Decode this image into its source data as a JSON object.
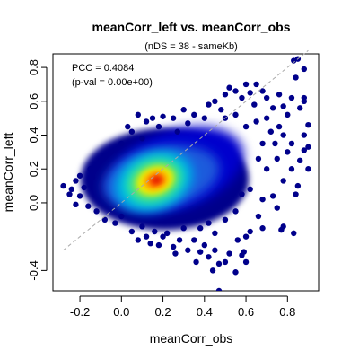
{
  "chart_data": {
    "type": "scatter",
    "title": "meanCorr_left vs. meanCorr_obs",
    "subtitle": "(nDS = 38 - sameKb)",
    "xlabel": "meanCorr_obs",
    "ylabel": "meanCorr_left",
    "xlim": [
      -0.33,
      0.95
    ],
    "ylim": [
      -0.52,
      0.88
    ],
    "x_ticks": [
      -0.2,
      0.0,
      0.2,
      0.4,
      0.6,
      0.8
    ],
    "x_tick_labels": [
      "-0.2",
      "0.0",
      "0.2",
      "0.4",
      "0.6",
      "0.8"
    ],
    "y_ticks": [
      -0.4,
      0.0,
      0.2,
      0.4,
      0.6,
      0.8
    ],
    "y_tick_labels": [
      "-0.4",
      "0.0",
      "0.2",
      "0.4",
      "0.6",
      "0.8"
    ],
    "grid": false,
    "annotations": [
      "PCC = 0.4084",
      "(p-val = 0.00e+00)"
    ],
    "reference_line": {
      "style": "dashed",
      "color": "#aaaaaa",
      "from": [
        -0.28,
        -0.28
      ],
      "to": [
        0.9,
        0.9
      ]
    },
    "density": {
      "peak": [
        0.17,
        0.14
      ],
      "core": {
        "x_range": [
          -0.1,
          0.5
        ],
        "y_range": [
          -0.05,
          0.35
        ]
      },
      "colors": [
        "#00008b",
        "#0000cd",
        "#1e5adc",
        "#00a0e6",
        "#00dcd2",
        "#7de650",
        "#f0f000",
        "#ffa000",
        "#ff3c00",
        "#c80000"
      ]
    },
    "outlier_points": [
      [
        0.83,
        0.84
      ],
      [
        0.85,
        0.85
      ],
      [
        0.88,
        0.79
      ],
      [
        0.84,
        0.74
      ],
      [
        0.88,
        0.62
      ],
      [
        0.86,
        0.56
      ],
      [
        0.82,
        0.62
      ],
      [
        0.78,
        0.57
      ],
      [
        0.76,
        0.64
      ],
      [
        0.7,
        0.62
      ],
      [
        0.73,
        0.56
      ],
      [
        0.8,
        0.52
      ],
      [
        0.9,
        0.46
      ],
      [
        0.88,
        0.4
      ],
      [
        0.9,
        0.33
      ],
      [
        0.88,
        0.31
      ],
      [
        0.86,
        0.25
      ],
      [
        0.75,
        0.26
      ],
      [
        0.82,
        0.2
      ],
      [
        0.78,
        0.13
      ],
      [
        0.84,
        0.05
      ],
      [
        0.73,
        0.04
      ],
      [
        0.75,
        -0.03
      ],
      [
        0.68,
        0.02
      ],
      [
        0.66,
        -0.08
      ],
      [
        0.78,
        -0.14
      ],
      [
        0.68,
        -0.15
      ],
      [
        0.62,
        -0.17
      ],
      [
        0.83,
        -0.18
      ],
      [
        0.77,
        -0.16
      ],
      [
        0.55,
        -0.41
      ],
      [
        0.52,
        -0.3
      ],
      [
        0.5,
        -0.35
      ],
      [
        0.47,
        -0.36
      ],
      [
        0.45,
        -0.28
      ],
      [
        0.4,
        -0.25
      ],
      [
        0.38,
        -0.29
      ],
      [
        0.42,
        -0.32
      ],
      [
        0.35,
        -0.22
      ],
      [
        0.56,
        -0.22
      ],
      [
        0.59,
        -0.29
      ],
      [
        0.6,
        -0.35
      ],
      [
        0.58,
        -0.31
      ],
      [
        0.47,
        -0.52
      ],
      [
        0.3,
        -0.15
      ],
      [
        0.22,
        -0.18
      ],
      [
        0.16,
        -0.17
      ],
      [
        0.1,
        -0.14
      ],
      [
        0.08,
        -0.22
      ],
      [
        0.05,
        -0.17
      ],
      [
        0.0,
        -0.08
      ],
      [
        0.14,
        -0.24
      ],
      [
        0.38,
        -0.15
      ],
      [
        -0.28,
        0.1
      ],
      [
        -0.25,
        0.05
      ],
      [
        -0.22,
        -0.01
      ],
      [
        -0.2,
        0.16
      ],
      [
        -0.22,
        0.13
      ],
      [
        -0.18,
        0.09
      ],
      [
        -0.15,
        0.2
      ],
      [
        -0.1,
        0.25
      ],
      [
        -0.05,
        0.3
      ],
      [
        0.0,
        0.35
      ],
      [
        0.05,
        0.42
      ],
      [
        0.12,
        0.48
      ],
      [
        0.15,
        0.5
      ],
      [
        0.08,
        0.52
      ],
      [
        0.2,
        0.51
      ],
      [
        0.3,
        0.55
      ],
      [
        0.25,
        0.5
      ],
      [
        0.35,
        0.52
      ],
      [
        0.45,
        0.6
      ],
      [
        0.5,
        0.64
      ],
      [
        0.52,
        0.68
      ],
      [
        0.55,
        0.66
      ],
      [
        0.6,
        0.7
      ],
      [
        0.62,
        0.65
      ],
      [
        0.65,
        0.7
      ],
      [
        0.68,
        0.66
      ],
      [
        0.58,
        0.62
      ],
      [
        0.42,
        0.58
      ],
      [
        0.48,
        0.55
      ],
      [
        0.55,
        0.52
      ],
      [
        0.6,
        0.45
      ],
      [
        0.65,
        0.48
      ],
      [
        0.7,
        0.5
      ],
      [
        0.72,
        0.42
      ],
      [
        0.78,
        0.4
      ],
      [
        0.74,
        0.35
      ],
      [
        0.8,
        0.3
      ],
      [
        0.68,
        0.35
      ],
      [
        0.7,
        0.2
      ],
      [
        0.66,
        0.26
      ],
      [
        0.62,
        0.08
      ],
      [
        0.58,
        0.05
      ],
      [
        0.55,
        -0.05
      ],
      [
        0.5,
        -0.1
      ],
      [
        0.45,
        -0.18
      ],
      [
        0.42,
        -0.12
      ],
      [
        0.28,
        -0.22
      ],
      [
        0.32,
        -0.28
      ],
      [
        0.25,
        -0.26
      ],
      [
        0.18,
        -0.25
      ],
      [
        0.2,
        -0.2
      ],
      [
        -0.12,
        -0.05
      ],
      [
        -0.08,
        -0.1
      ],
      [
        -0.03,
        -0.12
      ],
      [
        -0.2,
        0.04
      ],
      [
        -0.16,
        -0.02
      ],
      [
        0.03,
        0.45
      ],
      [
        0.1,
        0.38
      ],
      [
        -0.08,
        0.28
      ],
      [
        0.32,
        0.47
      ],
      [
        0.4,
        0.5
      ],
      [
        0.27,
        0.42
      ],
      [
        0.85,
        0.1
      ],
      [
        0.9,
        0.2
      ],
      [
        0.88,
        0.6
      ],
      [
        0.64,
        0.58
      ],
      [
        0.6,
        -0.2
      ],
      [
        0.44,
        -0.4
      ],
      [
        0.36,
        -0.35
      ],
      [
        0.26,
        -0.3
      ],
      [
        0.12,
        -0.2
      ],
      [
        -0.24,
        0.08
      ],
      [
        0.82,
        0.35
      ],
      [
        0.76,
        0.45
      ],
      [
        0.5,
        0.5
      ],
      [
        0.18,
        0.45
      ],
      [
        -0.14,
        0.15
      ]
    ]
  }
}
